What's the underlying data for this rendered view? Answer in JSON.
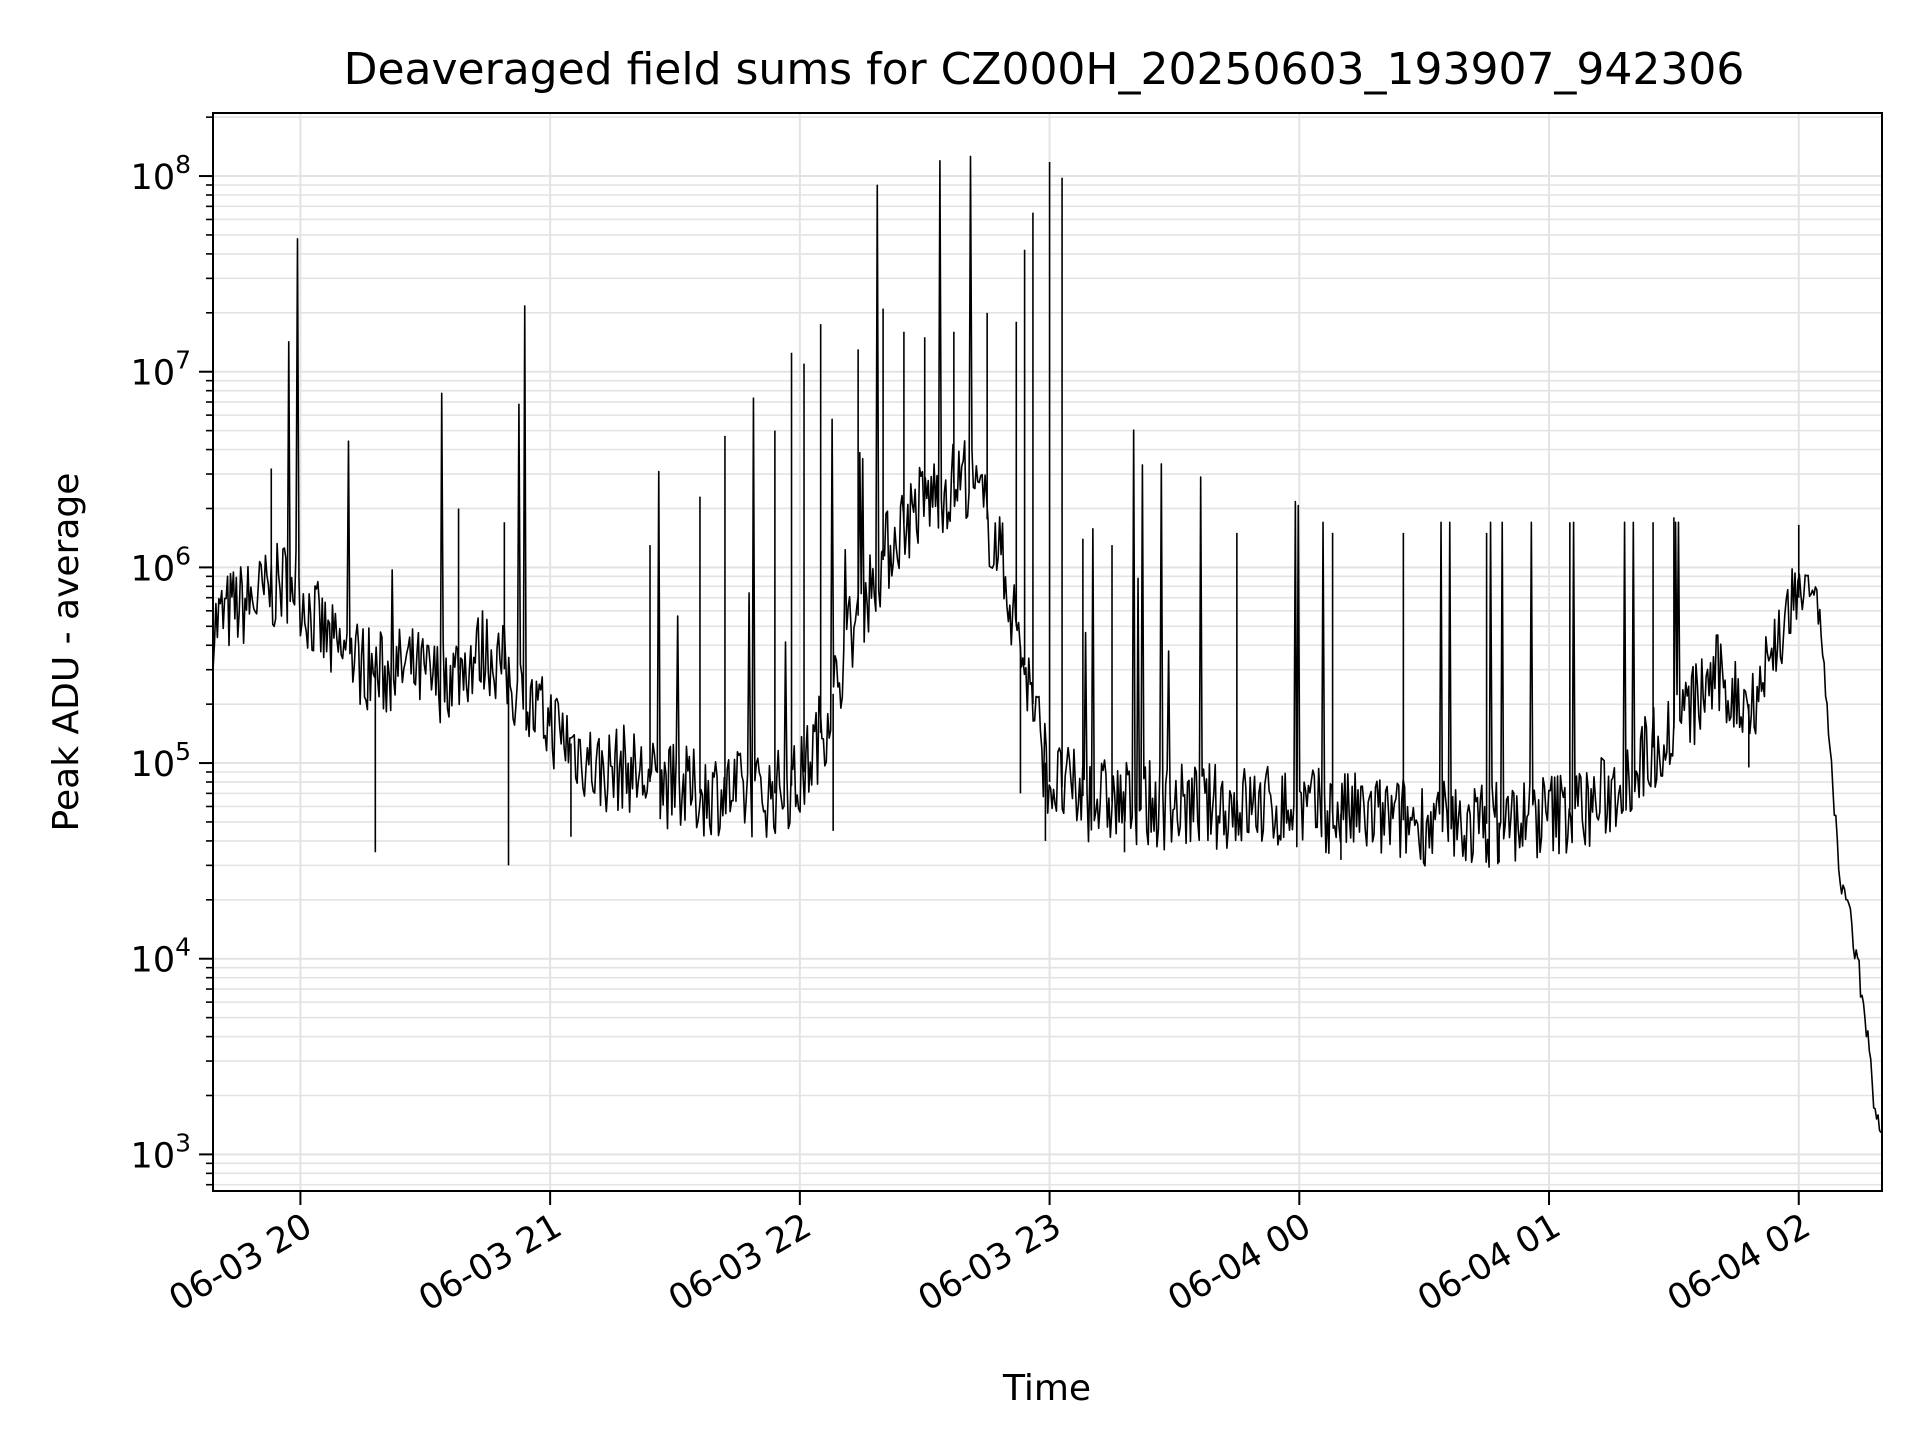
{
  "chart_data": {
    "type": "line",
    "title": "Deaveraged field sums for CZ000H_20250603_193907_942306",
    "xlabel": "Time",
    "ylabel": "Peak ADU - average",
    "yscale": "log",
    "ylim": [
      650,
      210000000
    ],
    "xlim": [
      "06-03 19:39",
      "06-04 02:20"
    ],
    "grid": true,
    "line_color": "#000000",
    "grid_color": "#e3e3e3",
    "x_ticks": [
      {
        "t": "06-03 20:00",
        "label": "06-03 20"
      },
      {
        "t": "06-03 21:00",
        "label": "06-03 21"
      },
      {
        "t": "06-03 22:00",
        "label": "06-03 22"
      },
      {
        "t": "06-03 23:00",
        "label": "06-03 23"
      },
      {
        "t": "06-04 00:00",
        "label": "06-04 00"
      },
      {
        "t": "06-04 01:00",
        "label": "06-04 01"
      },
      {
        "t": "06-04 02:00",
        "label": "06-04 02"
      }
    ],
    "y_ticks": [
      {
        "value": 1000,
        "base": "10",
        "exp": "3"
      },
      {
        "value": 10000,
        "base": "10",
        "exp": "4"
      },
      {
        "value": 100000,
        "base": "10",
        "exp": "5"
      },
      {
        "value": 1000000,
        "base": "10",
        "exp": "6"
      },
      {
        "value": 10000000,
        "base": "10",
        "exp": "7"
      },
      {
        "value": 100000000,
        "base": "10",
        "exp": "8"
      }
    ],
    "series": [
      {
        "points": [
          [
            "06-03 19:39",
            500000
          ],
          [
            "06-03 19:44",
            620000
          ],
          [
            "06-03 19:49",
            680000
          ],
          [
            "06-03 19:54",
            780000
          ],
          [
            "06-03 19:58",
            900000
          ],
          [
            "06-03 20:02",
            600000
          ],
          [
            "06-03 20:08",
            380000
          ],
          [
            "06-03 20:14",
            330000
          ],
          [
            "06-03 20:20",
            280000
          ],
          [
            "06-03 20:26",
            310000
          ],
          [
            "06-03 20:32",
            260000
          ],
          [
            "06-03 20:38",
            300000
          ],
          [
            "06-03 20:44",
            380000
          ],
          [
            "06-03 20:48",
            330000
          ],
          [
            "06-03 20:52",
            230000
          ],
          [
            "06-03 20:56",
            180000
          ],
          [
            "06-03 21:00",
            160000
          ],
          [
            "06-03 21:06",
            120000
          ],
          [
            "06-03 21:12",
            90000
          ],
          [
            "06-03 21:18",
            95000
          ],
          [
            "06-03 21:24",
            80000
          ],
          [
            "06-03 21:30",
            75000
          ],
          [
            "06-03 21:36",
            70000
          ],
          [
            "06-03 21:42",
            72000
          ],
          [
            "06-03 21:48",
            68000
          ],
          [
            "06-03 21:54",
            70000
          ],
          [
            "06-03 22:00",
            80000
          ],
          [
            "06-03 22:06",
            160000
          ],
          [
            "06-03 22:12",
            450000
          ],
          [
            "06-03 22:18",
            900000
          ],
          [
            "06-03 22:24",
            1600000
          ],
          [
            "06-03 22:30",
            2200000
          ],
          [
            "06-03 22:36",
            2600000
          ],
          [
            "06-03 22:40",
            3000000
          ],
          [
            "06-03 22:44",
            2000000
          ],
          [
            "06-03 22:48",
            1200000
          ],
          [
            "06-03 22:52",
            500000
          ],
          [
            "06-03 22:56",
            200000
          ],
          [
            "06-03 23:00",
            80000
          ],
          [
            "06-03 23:10",
            65000
          ],
          [
            "06-03 23:20",
            62000
          ],
          [
            "06-03 23:30",
            60000
          ],
          [
            "06-03 23:40",
            60000
          ],
          [
            "06-03 23:50",
            60000
          ],
          [
            "06-04 00:00",
            58000
          ],
          [
            "06-04 00:10",
            55000
          ],
          [
            "06-04 00:20",
            52000
          ],
          [
            "06-04 00:30",
            50000
          ],
          [
            "06-04 00:40",
            48000
          ],
          [
            "06-04 00:50",
            50000
          ],
          [
            "06-04 01:00",
            55000
          ],
          [
            "06-04 01:10",
            60000
          ],
          [
            "06-04 01:15",
            70000
          ],
          [
            "06-04 01:20",
            90000
          ],
          [
            "06-04 01:25",
            120000
          ],
          [
            "06-04 01:30",
            150000
          ],
          [
            "06-04 01:35",
            200000
          ],
          [
            "06-04 01:40",
            280000
          ],
          [
            "06-04 01:44",
            220000
          ],
          [
            "06-04 01:48",
            200000
          ],
          [
            "06-04 01:52",
            300000
          ],
          [
            "06-04 01:56",
            500000
          ],
          [
            "06-04 02:00",
            700000
          ],
          [
            "06-04 02:02",
            900000
          ],
          [
            "06-04 02:04",
            750000
          ],
          [
            "06-04 02:06",
            350000
          ],
          [
            "06-04 02:08",
            80000
          ],
          [
            "06-04 02:10",
            25000
          ],
          [
            "06-04 02:12",
            18000
          ],
          [
            "06-04 02:14",
            10000
          ],
          [
            "06-04 02:16",
            5000
          ],
          [
            "06-04 02:18",
            2000
          ],
          [
            "06-04 02:20",
            1000
          ]
        ],
        "spikes": [
          [
            "06-03 19:53",
            3200000
          ],
          [
            "06-03 20:18",
            35000
          ],
          [
            "06-03 20:38",
            2000000
          ],
          [
            "06-03 20:50",
            30000
          ],
          [
            "06-03 20:49",
            1700000
          ],
          [
            "06-03 21:05",
            42000
          ],
          [
            "06-03 21:24",
            1300000
          ],
          [
            "06-03 21:36",
            2300000
          ],
          [
            "06-03 21:42",
            4700000
          ],
          [
            "06-03 21:54",
            5000000
          ],
          [
            "06-03 21:58",
            12500000
          ],
          [
            "06-03 22:01",
            11000000
          ],
          [
            "06-03 22:05",
            17500000
          ],
          [
            "06-03 22:08",
            45000
          ],
          [
            "06-03 22:14",
            13000000
          ],
          [
            "06-03 22:20",
            21000000
          ],
          [
            "06-03 22:25",
            16000000
          ],
          [
            "06-03 22:30",
            15000000
          ],
          [
            "06-03 22:37",
            16000000
          ],
          [
            "06-03 22:45",
            20000000
          ],
          [
            "06-03 22:52",
            18000000
          ],
          [
            "06-03 22:53",
            70000
          ],
          [
            "06-03 22:54",
            42000000
          ],
          [
            "06-03 22:56",
            65000000
          ],
          [
            "06-03 22:59",
            40000
          ],
          [
            "06-03 23:00",
            118000000
          ],
          [
            "06-03 23:03",
            98000000
          ],
          [
            "06-03 23:08",
            1400000
          ],
          [
            "06-03 23:15",
            1300000
          ],
          [
            "06-03 23:18",
            35000
          ],
          [
            "06-03 23:45",
            1500000
          ],
          [
            "06-04 00:08",
            1500000
          ],
          [
            "06-04 00:10",
            32000
          ],
          [
            "06-04 00:25",
            1500000
          ],
          [
            "06-04 00:45",
            1500000
          ],
          [
            "06-04 00:48",
            31000
          ],
          [
            "06-04 01:05",
            1700000
          ],
          [
            "06-04 01:25",
            1700000
          ],
          [
            "06-04 01:30",
            1800000
          ],
          [
            "06-04 01:48",
            95000
          ],
          [
            "06-04 02:00",
            1650000
          ]
        ]
      }
    ]
  }
}
